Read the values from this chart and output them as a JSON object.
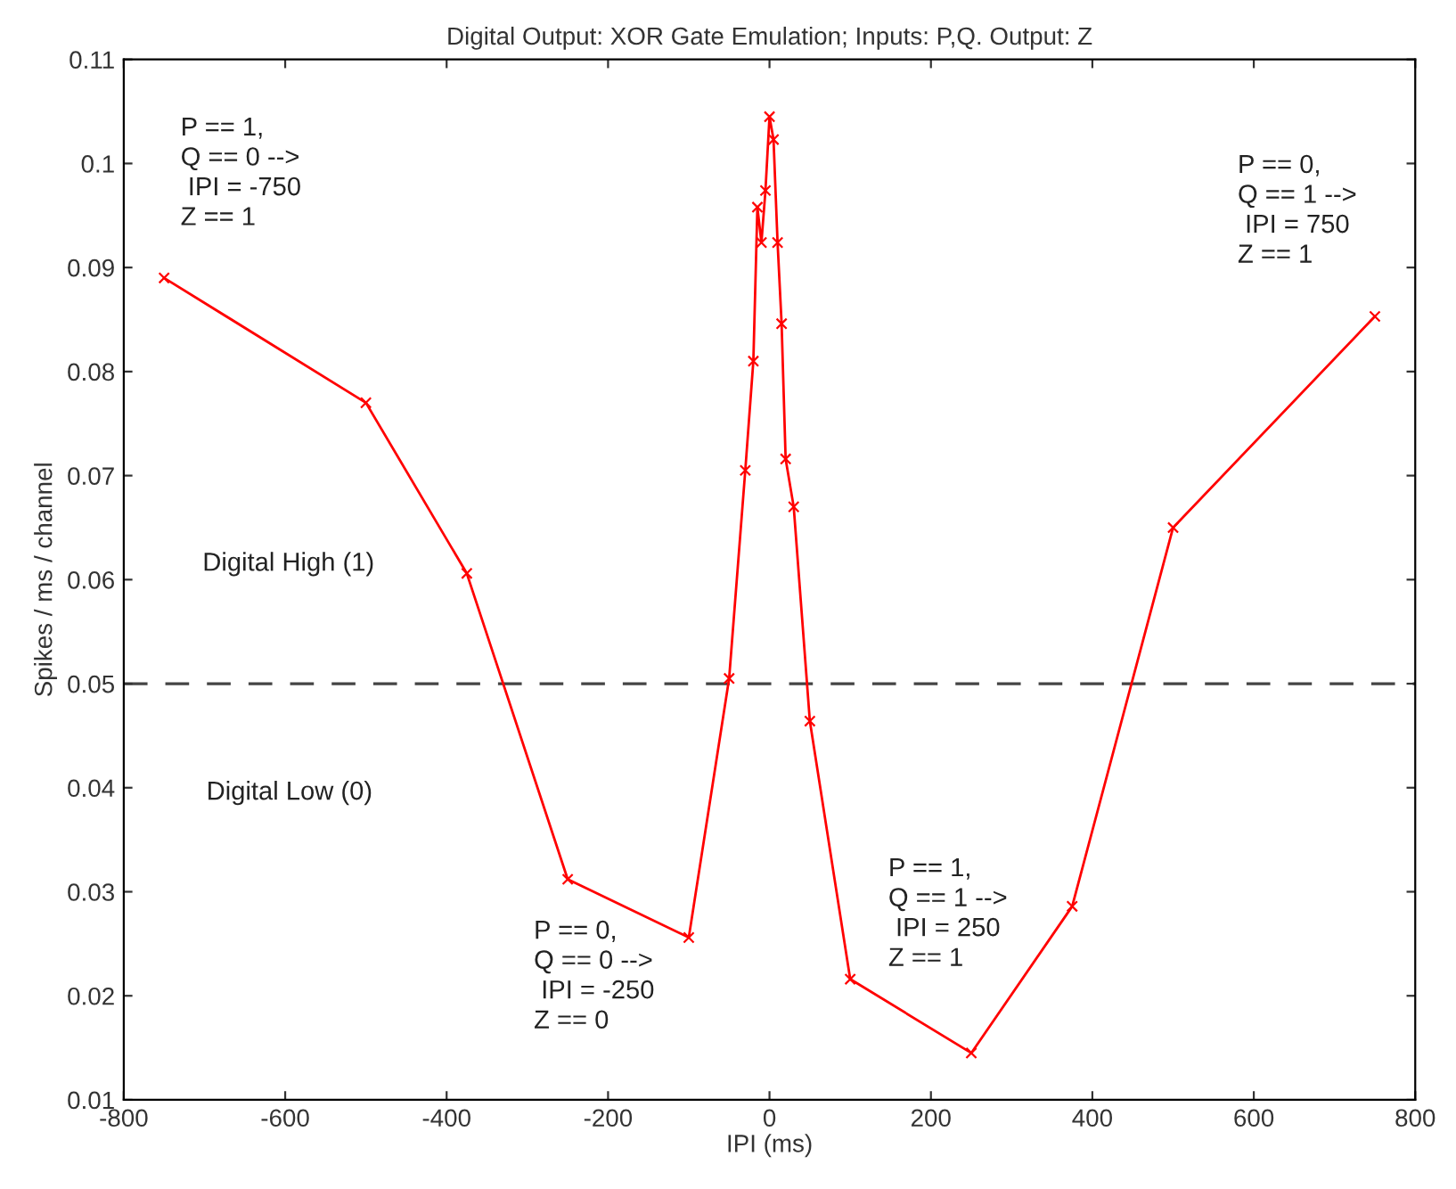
{
  "chart_data": {
    "type": "line",
    "title": "Digital Output: XOR Gate Emulation; Inputs: P,Q. Output: Z",
    "xlabel": "IPI (ms)",
    "ylabel": "Spikes / ms / channel",
    "x": [
      -750,
      -500,
      -375,
      -250,
      -100,
      -50,
      -30,
      -20,
      -15,
      -10,
      -5,
      0,
      5,
      10,
      15,
      20,
      30,
      50,
      100,
      250,
      375,
      500,
      750
    ],
    "series": [
      {
        "color": "#ff0000",
        "values": [
          0.089,
          0.077,
          0.0606,
          0.0312,
          0.0256,
          0.0505,
          0.0705,
          0.081,
          0.0958,
          0.0924,
          0.0974,
          0.1045,
          0.1023,
          0.0924,
          0.0846,
          0.0716,
          0.067,
          0.0464,
          0.0216,
          0.0145,
          0.0286,
          0.065,
          0.0853
        ]
      }
    ],
    "marker": "cross",
    "line_style": "solid",
    "grid": false,
    "legend": false,
    "xlim": [
      -800,
      800
    ],
    "xticks": [
      -800,
      -600,
      -400,
      -200,
      0,
      200,
      400,
      600,
      800
    ],
    "ylim": [
      0.01,
      0.11
    ],
    "yticks": [
      0.01,
      0.02,
      0.03,
      0.04,
      0.05,
      0.06,
      0.07,
      0.08,
      0.09,
      0.1,
      0.11
    ],
    "ref_lines": [
      {
        "axis": "y",
        "value": 0.05,
        "color": "#444444",
        "line_style": "dashed"
      }
    ],
    "annotations": [
      "P == 1,\nQ == 0 -->\n IPI = -750\nZ == 1",
      "P == 0,\nQ == 1 -->\n IPI = 750\nZ == 1",
      "P == 0,\nQ == 0 -->\n IPI = -250\nZ == 0",
      "P == 1,\nQ == 1 -->\n IPI = 250\nZ == 1",
      "Digital High (1)",
      "Digital Low (0)"
    ]
  }
}
